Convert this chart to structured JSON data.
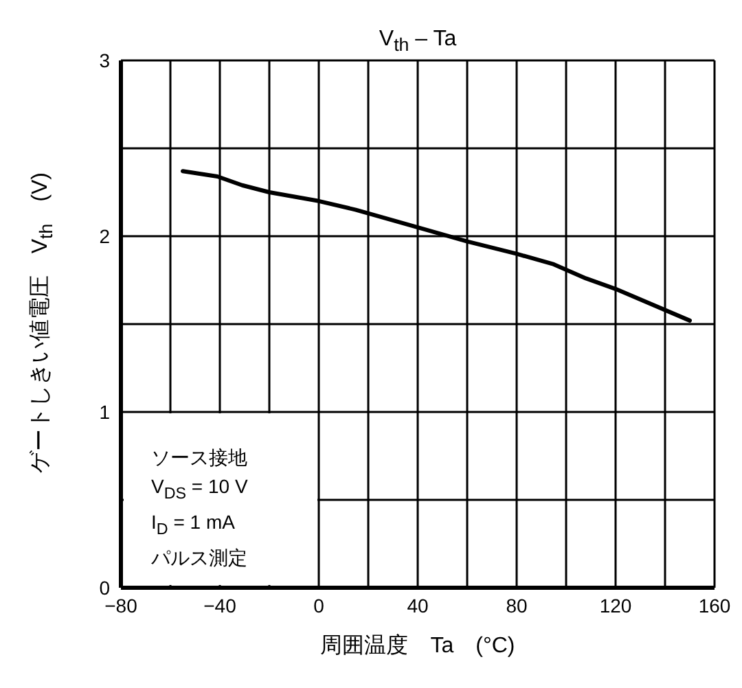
{
  "chart_data": {
    "type": "line",
    "title": "V$_{th}$ – Ta",
    "xlabel": "周囲温度　Ta　(°C)",
    "ylabel": "ゲートしきい値電圧　V$_{th}$　(V)",
    "annotations": [
      "ソース接地",
      "V$_{DS}$ = 10 V",
      "I$_{D}$ = 1 mA",
      "パルス測定"
    ],
    "x": [
      -55,
      -41,
      -31,
      -20,
      0,
      15,
      40,
      60,
      80,
      95,
      108,
      120,
      150
    ],
    "series": [
      {
        "color": "#000000",
        "values": [
          2.37,
          2.34,
          2.29,
          2.25,
          2.2,
          2.15,
          2.05,
          1.97,
          1.9,
          1.84,
          1.76,
          1.7,
          1.52
        ]
      }
    ],
    "xlim": [
      -80,
      160
    ],
    "xticks": [
      -80,
      {
        "value": -60,
        "label": null
      },
      -40,
      {
        "value": -20,
        "label": null
      },
      0,
      {
        "value": 20,
        "label": null
      },
      40,
      {
        "value": 60,
        "label": null
      },
      80,
      {
        "value": 100,
        "label": null
      },
      120,
      {
        "value": 140,
        "label": null
      },
      160
    ],
    "ylim": [
      0,
      3
    ],
    "yticks": [
      0,
      {
        "value": 0.5,
        "label": null
      },
      1,
      {
        "value": 1.5,
        "label": null
      },
      2,
      {
        "value": 2.5,
        "label": null
      },
      3
    ],
    "grid": true
  }
}
